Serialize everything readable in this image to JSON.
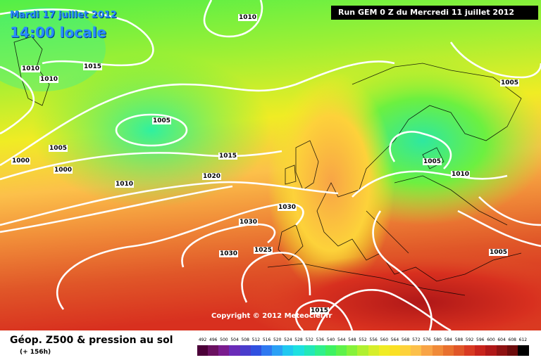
{
  "header": {
    "date": "Mardi 17 juillet 2012",
    "time": "14:00 locale",
    "run": "Run GEM 0 Z du Mercredi 11 juillet 2012"
  },
  "footer": {
    "title": "Géop. Z500 & pression au sol",
    "lead": "(+ 156h)"
  },
  "copyright": "Copyright © 2012 Meteociel.fr",
  "isobar_labels": [
    "1010",
    "1015",
    "1010",
    "1010",
    "1005",
    "1005",
    "1000",
    "1000",
    "1010",
    "1015",
    "1020",
    "1030",
    "1030",
    "1025",
    "1030",
    "1015",
    "1005",
    "1010",
    "1005",
    "1005"
  ],
  "legend": {
    "ticks": [
      "492",
      "496",
      "500",
      "504",
      "508",
      "512",
      "516",
      "520",
      "524",
      "528",
      "532",
      "536",
      "540",
      "544",
      "548",
      "552",
      "556",
      "560",
      "564",
      "568",
      "572",
      "576",
      "580",
      "584",
      "588",
      "592",
      "596",
      "600",
      "604",
      "608",
      "612"
    ],
    "colors": [
      "#4b0038",
      "#6a1060",
      "#7a1b8e",
      "#6a2bb8",
      "#4a3ccc",
      "#3050e0",
      "#2e78f0",
      "#2aa0f5",
      "#20c8f0",
      "#1de0e0",
      "#22e8b8",
      "#2ff08c",
      "#3ef262",
      "#5ef24a",
      "#86f23a",
      "#b0f030",
      "#d6ee2a",
      "#f0ec24",
      "#fae024",
      "#fdd23a",
      "#fcc04a",
      "#f8a446",
      "#f08a38",
      "#e8702e",
      "#e05628",
      "#d83a22",
      "#c8241c",
      "#b01818",
      "#8e1212",
      "#6c0c0c",
      "#000000"
    ]
  },
  "colors": {
    "text_blue": "#2a8cff",
    "isobar": "#ffffff"
  }
}
